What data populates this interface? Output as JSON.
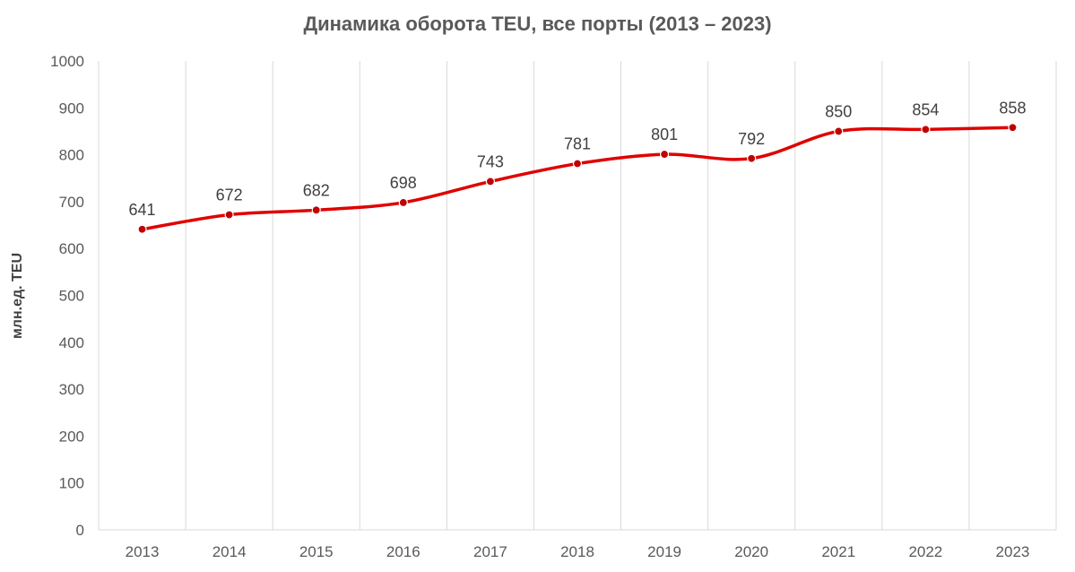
{
  "chart_data": {
    "type": "line",
    "title": "Динамика оборота TEU, все порты (2013 – 2023)",
    "xlabel": "",
    "ylabel": "млн.ед. TEU",
    "categories": [
      "2013",
      "2014",
      "2015",
      "2016",
      "2017",
      "2018",
      "2019",
      "2020",
      "2021",
      "2022",
      "2023"
    ],
    "series": [
      {
        "values": [
          641,
          672,
          682,
          698,
          743,
          781,
          801,
          792,
          850,
          854,
          858
        ]
      }
    ],
    "ylim": [
      0,
      1000
    ],
    "yticks": [
      0,
      100,
      200,
      300,
      400,
      500,
      600,
      700,
      800,
      900,
      1000
    ],
    "grid": "vertical",
    "data_labels": true,
    "smooth": true,
    "colors": {
      "line": "#e00000",
      "marker": "#c00000",
      "grid": "#d9d9d9",
      "text": "#595959"
    }
  }
}
